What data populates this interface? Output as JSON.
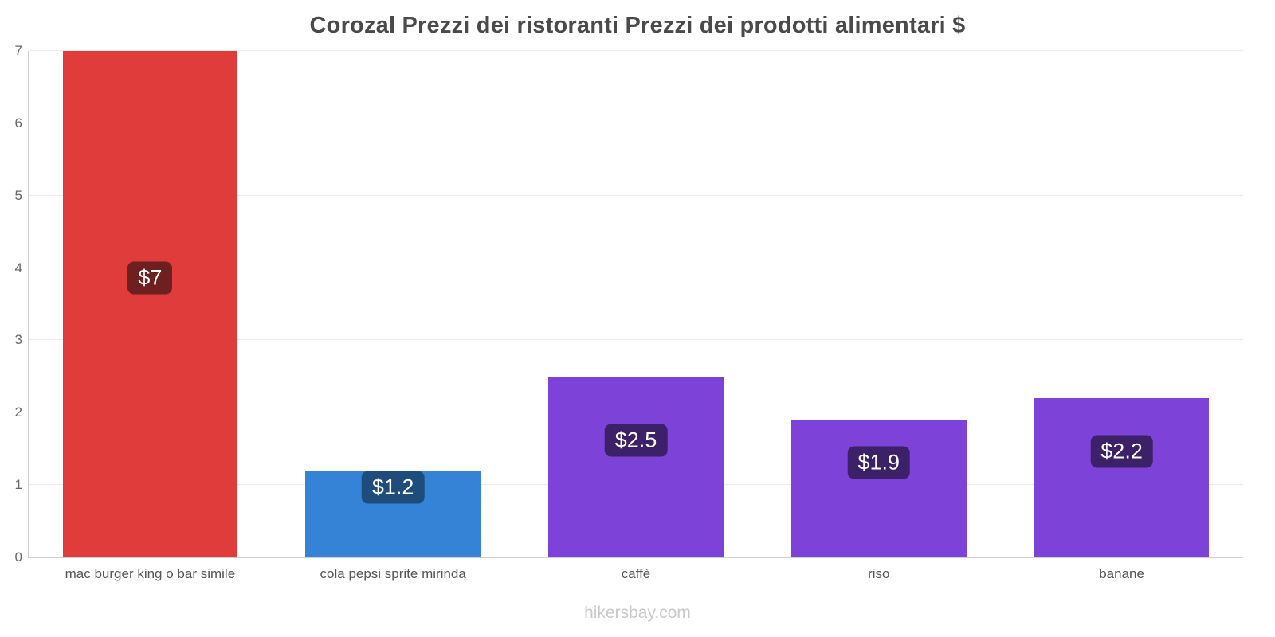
{
  "title": "Corozal Prezzi dei ristoranti Prezzi dei prodotti alimentari $",
  "footer": "hikersbay.com",
  "chart_data": {
    "type": "bar",
    "title": "Corozal Prezzi dei ristoranti Prezzi dei prodotti alimentari $",
    "categories": [
      "mac burger king o bar simile",
      "cola pepsi sprite mirinda",
      "caffè",
      "riso",
      "banane"
    ],
    "values": [
      7,
      1.2,
      2.5,
      1.9,
      2.2
    ],
    "value_labels": [
      "$7",
      "$1.2",
      "$2.5",
      "$1.9",
      "$2.2"
    ],
    "bar_colors": [
      "#e13c3c",
      "#3583d6",
      "#7d43d8",
      "#7d43d8",
      "#7d43d8"
    ],
    "badge_colors": [
      "#6e1f1f",
      "#1e4d7c",
      "#3c2168",
      "#3c2168",
      "#3c2168"
    ],
    "xlabel": "",
    "ylabel": "",
    "ylim": [
      0,
      7
    ],
    "yticks": [
      0,
      1,
      2,
      3,
      4,
      5,
      6,
      7
    ],
    "grid": true,
    "legend": false,
    "currency": "$"
  }
}
